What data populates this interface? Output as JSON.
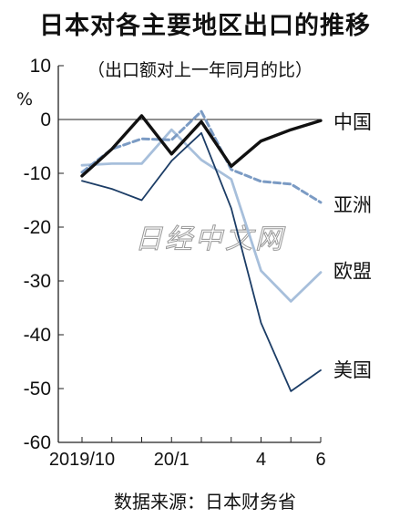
{
  "header": {
    "title": "日本对各主要地区出口的推移",
    "subtitle": "（出口额对上一年同月的比）",
    "unit": "%"
  },
  "footer": {
    "source": "数据来源：日本财务省"
  },
  "watermark": {
    "text": "日经中文网"
  },
  "chart_data": {
    "type": "line",
    "title": "日本对各主要地区出口的推移",
    "subtitle": "（出口额对上一年同月的比）",
    "ylabel": "%",
    "xlabel": "",
    "x": [
      "2019/10",
      "2019/11",
      "2019/12",
      "20/1",
      "20/2",
      "20/3",
      "20/4",
      "20/5",
      "20/6"
    ],
    "x_tick_labels": [
      {
        "index": 0,
        "label": "2019/10"
      },
      {
        "index": 3,
        "label": "20/1"
      },
      {
        "index": 6,
        "label": "4"
      },
      {
        "index": 8,
        "label": "6"
      }
    ],
    "ylim": [
      -60,
      10
    ],
    "yticks": [
      10,
      0,
      -10,
      -20,
      -30,
      -40,
      -50,
      -60
    ],
    "grid": false,
    "legend": "direct labels at line ends",
    "series": [
      {
        "name": "中国",
        "color": "#111111",
        "style": "solid-thick",
        "values": [
          -10.5,
          -5.5,
          0.7,
          -6.4,
          -0.4,
          -8.7,
          -4.0,
          -1.9,
          -0.2
        ]
      },
      {
        "name": "亚洲",
        "color": "#7b9bc4",
        "style": "dashed",
        "values": [
          -9.8,
          -5.5,
          -3.6,
          -3.8,
          1.5,
          -9.3,
          -11.5,
          -12.0,
          -15.4
        ]
      },
      {
        "name": "欧盟",
        "color": "#a7bfdb",
        "style": "solid-light",
        "values": [
          -8.5,
          -8.2,
          -8.2,
          -1.9,
          -7.5,
          -11.1,
          -28.1,
          -33.8,
          -28.4
        ]
      },
      {
        "name": "美国",
        "color": "#1c3d66",
        "style": "solid-thin",
        "values": [
          -11.4,
          -12.9,
          -15.0,
          -7.7,
          -2.5,
          -16.5,
          -37.8,
          -50.5,
          -46.6
        ]
      }
    ]
  }
}
